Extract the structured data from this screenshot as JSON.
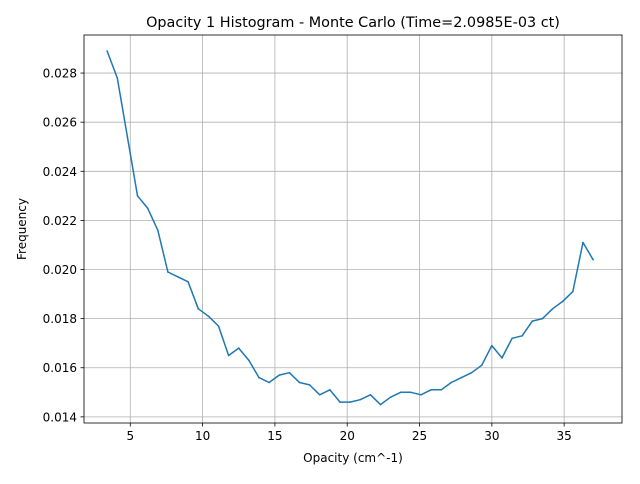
{
  "chart_data": {
    "type": "line",
    "title": "Opacity 1 Histogram - Monte Carlo (Time=2.0985E-03 ct)",
    "xlabel": "Opacity (cm^-1)",
    "ylabel": "Frequency",
    "xlim": [
      1.8,
      39.0
    ],
    "ylim": [
      0.01375,
      0.02955
    ],
    "xticks": [
      5,
      10,
      15,
      20,
      25,
      30,
      35
    ],
    "xtick_labels": [
      "5",
      "10",
      "15",
      "20",
      "25",
      "30",
      "35"
    ],
    "yticks": [
      0.014,
      0.016,
      0.018,
      0.02,
      0.022,
      0.024,
      0.026,
      0.028
    ],
    "ytick_labels": [
      "0.014",
      "0.016",
      "0.018",
      "0.020",
      "0.022",
      "0.024",
      "0.026",
      "0.028"
    ],
    "grid": true,
    "series": [
      {
        "color": "#1f77b4",
        "x": [
          3.4,
          4.1,
          4.8,
          5.5,
          6.2,
          6.9,
          7.6,
          8.3,
          9.0,
          9.7,
          10.4,
          11.1,
          11.8,
          12.5,
          13.2,
          13.9,
          14.6,
          15.3,
          16.0,
          16.7,
          17.4,
          18.1,
          18.8,
          19.5,
          20.2,
          20.9,
          21.6,
          22.3,
          23.0,
          23.7,
          24.4,
          25.1,
          25.8,
          26.5,
          27.2,
          27.9,
          28.6,
          29.3,
          30.0,
          30.7,
          31.4,
          32.1,
          32.8,
          33.5,
          34.2,
          34.9,
          35.6,
          36.3,
          37.0
        ],
        "y": [
          0.0289,
          0.0278,
          0.0254,
          0.023,
          0.0225,
          0.0216,
          0.0199,
          0.0197,
          0.0195,
          0.0184,
          0.0181,
          0.0177,
          0.0165,
          0.0168,
          0.0163,
          0.0156,
          0.0154,
          0.0157,
          0.0158,
          0.0154,
          0.0153,
          0.0149,
          0.0151,
          0.0146,
          0.0146,
          0.0147,
          0.0149,
          0.0145,
          0.0148,
          0.015,
          0.015,
          0.0149,
          0.0151,
          0.0151,
          0.0154,
          0.0156,
          0.0158,
          0.0161,
          0.0169,
          0.0164,
          0.0172,
          0.0173,
          0.0179,
          0.018,
          0.0184,
          0.0187,
          0.0191,
          0.0211,
          0.0204
        ]
      }
    ]
  }
}
